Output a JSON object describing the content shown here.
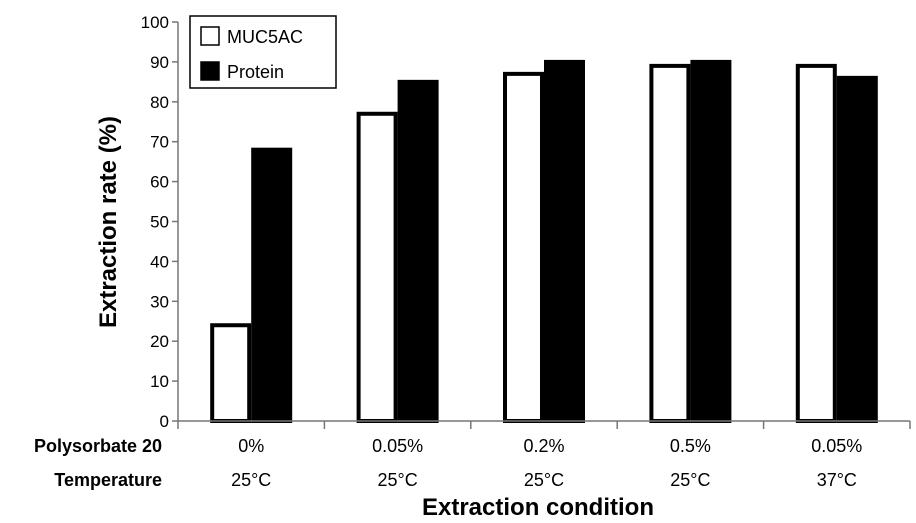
{
  "chart_data": {
    "type": "bar",
    "xlabel": "Extraction condition",
    "ylabel": "Extraction rate (%)",
    "ylim": [
      0,
      100
    ],
    "yticks": [
      0,
      10,
      20,
      30,
      40,
      50,
      60,
      70,
      80,
      90,
      100
    ],
    "grid": false,
    "legend_position": "top-left",
    "category_rows": [
      {
        "label": "Polysorbate 20",
        "values": [
          "0%",
          "0.05%",
          "0.2%",
          "0.5%",
          "0.05%"
        ]
      },
      {
        "label": "Temperature",
        "values": [
          "25°C",
          "25°C",
          "25°C",
          "25°C",
          "37°C"
        ]
      }
    ],
    "series": [
      {
        "name": "MUC5AC",
        "values": [
          24,
          77,
          87,
          89,
          89
        ],
        "fill": "#ffffff",
        "stroke": "#000000"
      },
      {
        "name": "Protein",
        "values": [
          68,
          85,
          90,
          90,
          86
        ],
        "fill": "#000000",
        "stroke": "#000000"
      }
    ]
  }
}
